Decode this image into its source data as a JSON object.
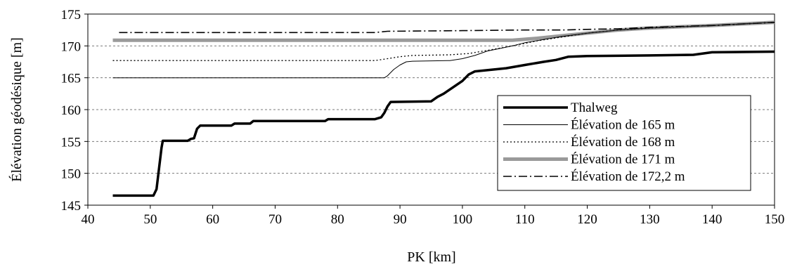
{
  "chart_data": {
    "type": "line",
    "xlabel": "PK [km]",
    "ylabel": "Élévation géodésique [m]",
    "xlim": [
      40,
      150
    ],
    "ylim": [
      145,
      175
    ],
    "xticks": [
      40,
      50,
      60,
      70,
      80,
      90,
      100,
      110,
      120,
      130,
      140,
      150
    ],
    "yticks": [
      145,
      150,
      155,
      160,
      165,
      170,
      175
    ],
    "grid": "horizontal dashed",
    "legend_position": "right",
    "series": [
      {
        "name": "Thalweg",
        "color": "#000000",
        "style": "thick-solid",
        "points": [
          [
            44,
            146.5
          ],
          [
            50.5,
            146.5
          ],
          [
            51,
            147.5
          ],
          [
            51.8,
            154
          ],
          [
            52,
            155.1
          ],
          [
            56,
            155.1
          ],
          [
            56.5,
            155.4
          ],
          [
            57,
            155.5
          ],
          [
            57.5,
            157
          ],
          [
            58,
            157.5
          ],
          [
            63,
            157.5
          ],
          [
            63.5,
            157.8
          ],
          [
            66,
            157.8
          ],
          [
            66.5,
            158.2
          ],
          [
            78,
            158.2
          ],
          [
            78.5,
            158.5
          ],
          [
            86,
            158.5
          ],
          [
            87,
            158.8
          ],
          [
            87.5,
            159.5
          ],
          [
            88,
            160.5
          ],
          [
            88.5,
            161.2
          ],
          [
            95,
            161.3
          ],
          [
            96,
            162
          ],
          [
            97,
            162.5
          ],
          [
            100,
            164.5
          ],
          [
            101,
            165.5
          ],
          [
            102,
            166
          ],
          [
            107,
            166.5
          ],
          [
            110,
            167
          ],
          [
            113,
            167.5
          ],
          [
            115,
            167.8
          ],
          [
            117,
            168.3
          ],
          [
            120,
            168.4
          ],
          [
            130,
            168.5
          ],
          [
            137,
            168.6
          ],
          [
            140,
            169
          ],
          [
            150,
            169.1
          ]
        ]
      },
      {
        "name": "Élévation de 165 m",
        "color": "#000000",
        "style": "thin-solid",
        "points": [
          [
            44,
            165
          ],
          [
            87.5,
            165
          ],
          [
            88,
            165.3
          ],
          [
            89,
            166.3
          ],
          [
            90,
            167
          ],
          [
            91,
            167.5
          ],
          [
            92,
            167.6
          ],
          [
            98,
            167.7
          ],
          [
            100,
            168
          ],
          [
            102,
            168.5
          ],
          [
            104,
            169.2
          ],
          [
            106,
            169.6
          ],
          [
            108,
            170
          ],
          [
            110,
            170.5
          ],
          [
            113,
            171
          ],
          [
            116,
            171.5
          ],
          [
            120,
            172
          ],
          [
            125,
            172.5
          ],
          [
            130,
            172.8
          ],
          [
            140,
            173.2
          ],
          [
            150,
            173.7
          ]
        ]
      },
      {
        "name": "Élévation de 168 m",
        "color": "#000000",
        "style": "dotted",
        "points": [
          [
            44,
            167.7
          ],
          [
            86,
            167.7
          ],
          [
            88,
            168
          ],
          [
            90,
            168.3
          ],
          [
            92,
            168.5
          ],
          [
            98,
            168.6
          ],
          [
            101,
            168.8
          ],
          [
            104,
            169.3
          ],
          [
            108,
            170
          ],
          [
            112,
            170.8
          ],
          [
            116,
            171.4
          ],
          [
            120,
            172
          ],
          [
            125,
            172.5
          ],
          [
            130,
            172.8
          ],
          [
            140,
            173.2
          ],
          [
            150,
            173.7
          ]
        ]
      },
      {
        "name": "Élévation de 171 m",
        "color": "#9a9a9a",
        "style": "thick-gray",
        "points": [
          [
            44,
            170.9
          ],
          [
            108,
            170.9
          ],
          [
            112,
            171.2
          ],
          [
            116,
            171.6
          ],
          [
            120,
            172
          ],
          [
            125,
            172.5
          ],
          [
            130,
            172.8
          ],
          [
            140,
            173.2
          ],
          [
            150,
            173.7
          ]
        ]
      },
      {
        "name": "Élévation de 172,2 m",
        "color": "#000000",
        "style": "dash-dot",
        "points": [
          [
            45,
            172.1
          ],
          [
            86,
            172.1
          ],
          [
            88,
            172.3
          ],
          [
            100,
            172.4
          ],
          [
            110,
            172.5
          ],
          [
            116,
            172.5
          ],
          [
            120,
            172.6
          ],
          [
            125,
            172.7
          ],
          [
            130,
            172.9
          ],
          [
            140,
            173.2
          ],
          [
            150,
            173.7
          ]
        ]
      }
    ]
  }
}
